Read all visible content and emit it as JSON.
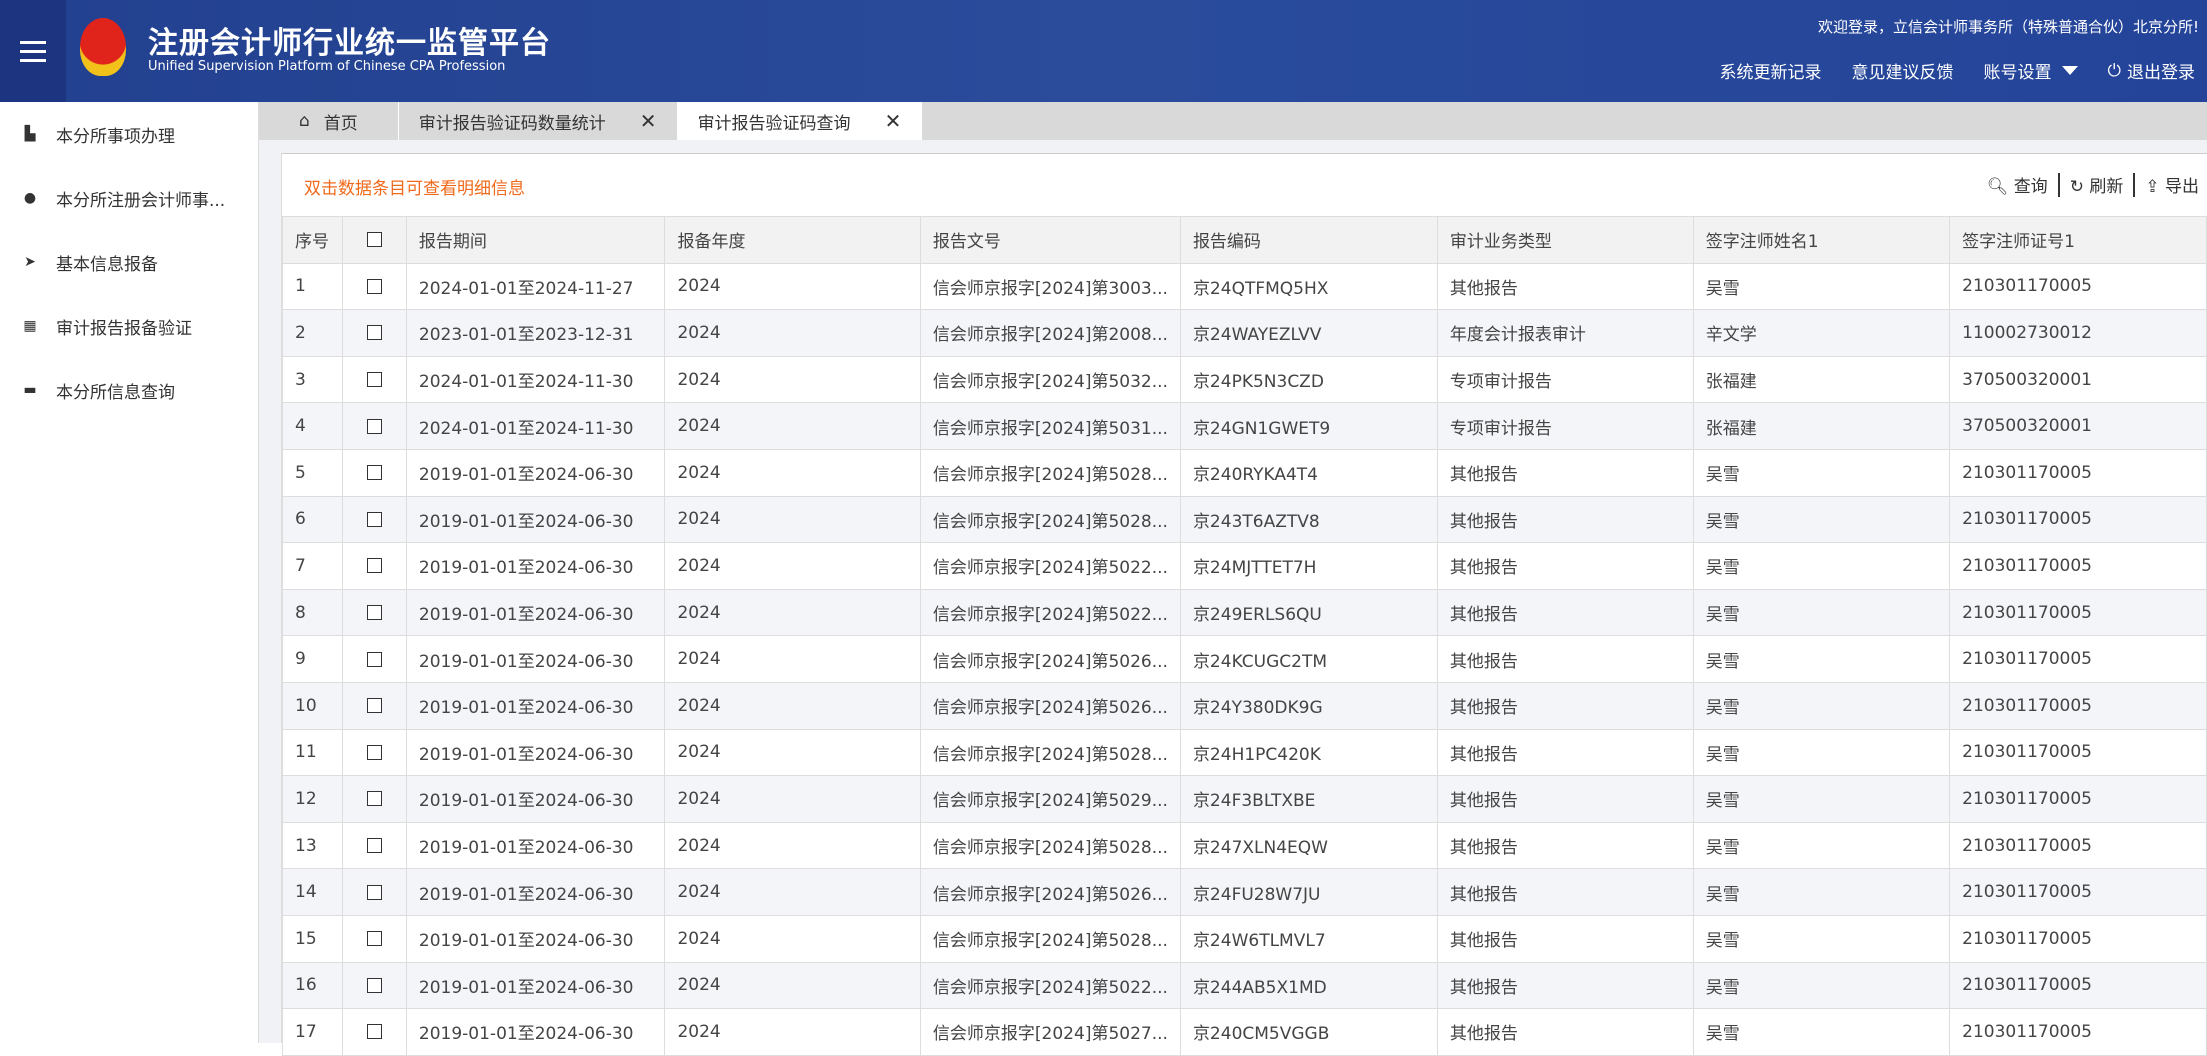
{
  "header": {
    "title": "注册会计师行业统一监管平台",
    "subtitle": "Unified Supervision Platform of Chinese CPA Profession",
    "welcome": "欢迎登录，立信会计师事务所（特殊普通合伙）北京分所!",
    "nav": [
      "系统更新记录",
      "意见建议反馈",
      "账号设置",
      "退出登录"
    ]
  },
  "sidebar": {
    "items": [
      {
        "label": "本分所事项办理",
        "icon": "building-icon"
      },
      {
        "label": "本分所注册会计师事...",
        "icon": "user-icon"
      },
      {
        "label": "基本信息报备",
        "icon": "send-icon"
      },
      {
        "label": "审计报告报备验证",
        "icon": "grid-icon"
      },
      {
        "label": "本分所信息查询",
        "icon": "monitor-icon"
      }
    ]
  },
  "tabs": [
    {
      "label": "首页"
    },
    {
      "label": "审计报告验证码数量统计"
    },
    {
      "label": "审计报告验证码查询"
    }
  ],
  "toolbar": {
    "hint": "双击数据条目可查看明细信息",
    "query": "查询",
    "refresh": "刷新",
    "export": "导出"
  },
  "table": {
    "columns": [
      "序号",
      "",
      "报告期间",
      "报备年度",
      "报告文号",
      "报告编码",
      "审计业务类型",
      "签字注师姓名1",
      "签字注师证号1"
    ],
    "rows": [
      [
        "1",
        "2024-01-01至2024-11-27",
        "2024",
        "信会师京报字[2024]第3003...",
        "京24QTFMQ5HX",
        "其他报告",
        "吴雪",
        "210301170005"
      ],
      [
        "2",
        "2023-01-01至2023-12-31",
        "2024",
        "信会师京报字[2024]第2008...",
        "京24WAYEZLVV",
        "年度会计报表审计",
        "辛文学",
        "110002730012"
      ],
      [
        "3",
        "2024-01-01至2024-11-30",
        "2024",
        "信会师京报字[2024]第5032...",
        "京24PK5N3CZD",
        "专项审计报告",
        "张福建",
        "370500320001"
      ],
      [
        "4",
        "2024-01-01至2024-11-30",
        "2024",
        "信会师京报字[2024]第5031...",
        "京24GN1GWET9",
        "专项审计报告",
        "张福建",
        "370500320001"
      ],
      [
        "5",
        "2019-01-01至2024-06-30",
        "2024",
        "信会师京报字[2024]第5028...",
        "京240RYKA4T4",
        "其他报告",
        "吴雪",
        "210301170005"
      ],
      [
        "6",
        "2019-01-01至2024-06-30",
        "2024",
        "信会师京报字[2024]第5028...",
        "京243T6AZTV8",
        "其他报告",
        "吴雪",
        "210301170005"
      ],
      [
        "7",
        "2019-01-01至2024-06-30",
        "2024",
        "信会师京报字[2024]第5022...",
        "京24MJTTET7H",
        "其他报告",
        "吴雪",
        "210301170005"
      ],
      [
        "8",
        "2019-01-01至2024-06-30",
        "2024",
        "信会师京报字[2024]第5022...",
        "京249ERLS6QU",
        "其他报告",
        "吴雪",
        "210301170005"
      ],
      [
        "9",
        "2019-01-01至2024-06-30",
        "2024",
        "信会师京报字[2024]第5026...",
        "京24KCUGC2TM",
        "其他报告",
        "吴雪",
        "210301170005"
      ],
      [
        "10",
        "2019-01-01至2024-06-30",
        "2024",
        "信会师京报字[2024]第5026...",
        "京24Y380DK9G",
        "其他报告",
        "吴雪",
        "210301170005"
      ],
      [
        "11",
        "2019-01-01至2024-06-30",
        "2024",
        "信会师京报字[2024]第5028...",
        "京24H1PC420K",
        "其他报告",
        "吴雪",
        "210301170005"
      ],
      [
        "12",
        "2019-01-01至2024-06-30",
        "2024",
        "信会师京报字[2024]第5029...",
        "京24F3BLTXBE",
        "其他报告",
        "吴雪",
        "210301170005"
      ],
      [
        "13",
        "2019-01-01至2024-06-30",
        "2024",
        "信会师京报字[2024]第5028...",
        "京247XLN4EQW",
        "其他报告",
        "吴雪",
        "210301170005"
      ],
      [
        "14",
        "2019-01-01至2024-06-30",
        "2024",
        "信会师京报字[2024]第5026...",
        "京24FU28W7JU",
        "其他报告",
        "吴雪",
        "210301170005"
      ],
      [
        "15",
        "2019-01-01至2024-06-30",
        "2024",
        "信会师京报字[2024]第5028...",
        "京24W6TLMVL7",
        "其他报告",
        "吴雪",
        "210301170005"
      ],
      [
        "16",
        "2019-01-01至2024-06-30",
        "2024",
        "信会师京报字[2024]第5022...",
        "京244AB5X1MD",
        "其他报告",
        "吴雪",
        "210301170005"
      ],
      [
        "17",
        "2019-01-01至2024-06-30",
        "2024",
        "信会师京报字[2024]第5027...",
        "京240CM5VGGB",
        "其他报告",
        "吴雪",
        "210301170005"
      ]
    ]
  }
}
